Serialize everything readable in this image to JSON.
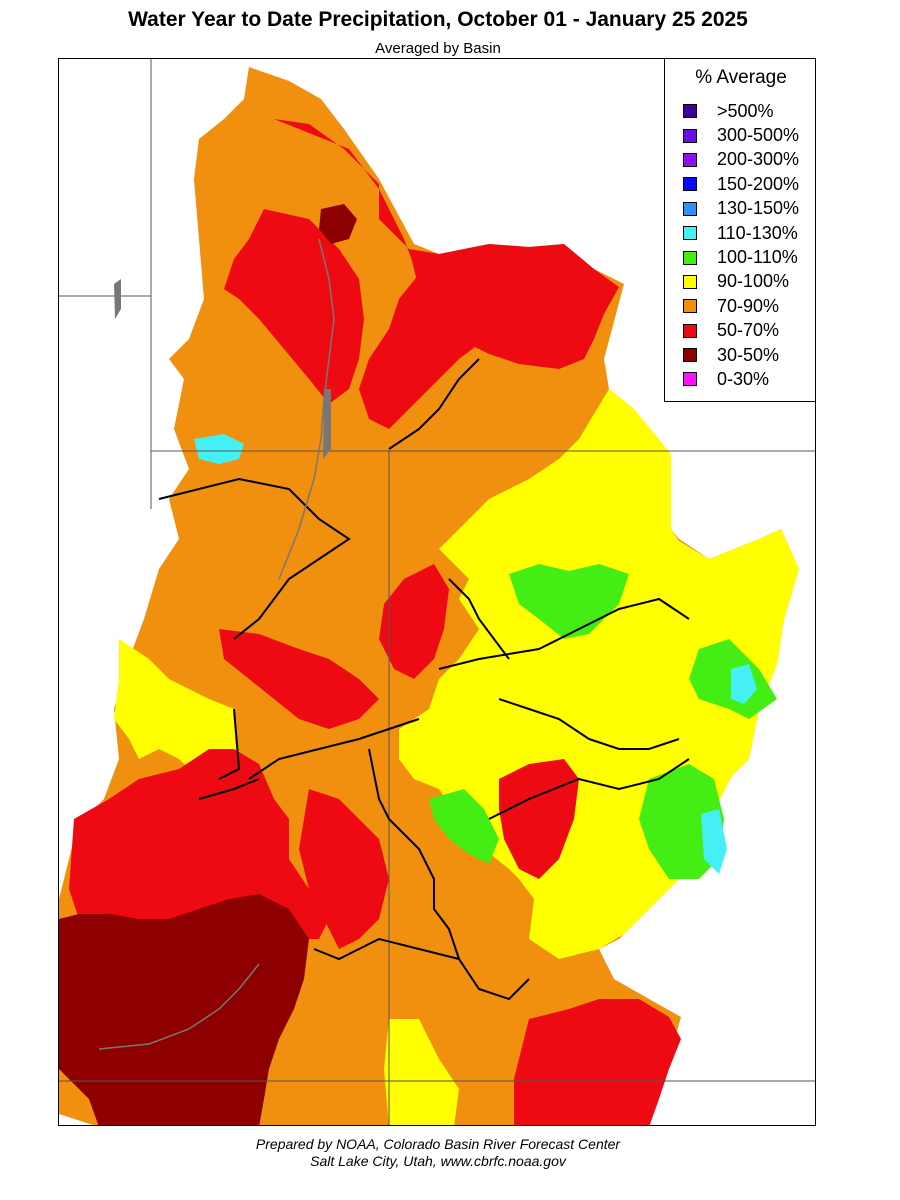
{
  "header": {
    "title": "Water Year to Date Precipitation, October 01  - January 25 2025",
    "subtitle": "Averaged by Basin"
  },
  "legend": {
    "title": "% Average",
    "items": [
      {
        "label": ">500%",
        "color": "#3f009a"
      },
      {
        "label": "300-500%",
        "color": "#6a0ee8"
      },
      {
        "label": "200-300%",
        "color": "#8a10f5"
      },
      {
        "label": "150-200%",
        "color": "#0a0aff"
      },
      {
        "label": "130-150%",
        "color": "#3090ff"
      },
      {
        "label": "110-130%",
        "color": "#44f0f4"
      },
      {
        "label": "100-110%",
        "color": "#44ee14"
      },
      {
        "label": "90-100%",
        "color": "#ffff00"
      },
      {
        "label": "70-90%",
        "color": "#f0900e"
      },
      {
        "label": "50-70%",
        "color": "#ee0a12"
      },
      {
        "label": "30-50%",
        "color": "#8e0000"
      },
      {
        "label": "0-30%",
        "color": "#ff10ff"
      }
    ]
  },
  "credit": {
    "line1": "Prepared by NOAA, Colorado Basin River Forecast Center",
    "line2": "Salt Lake City, Utah, www.cbrfc.noaa.gov"
  }
}
